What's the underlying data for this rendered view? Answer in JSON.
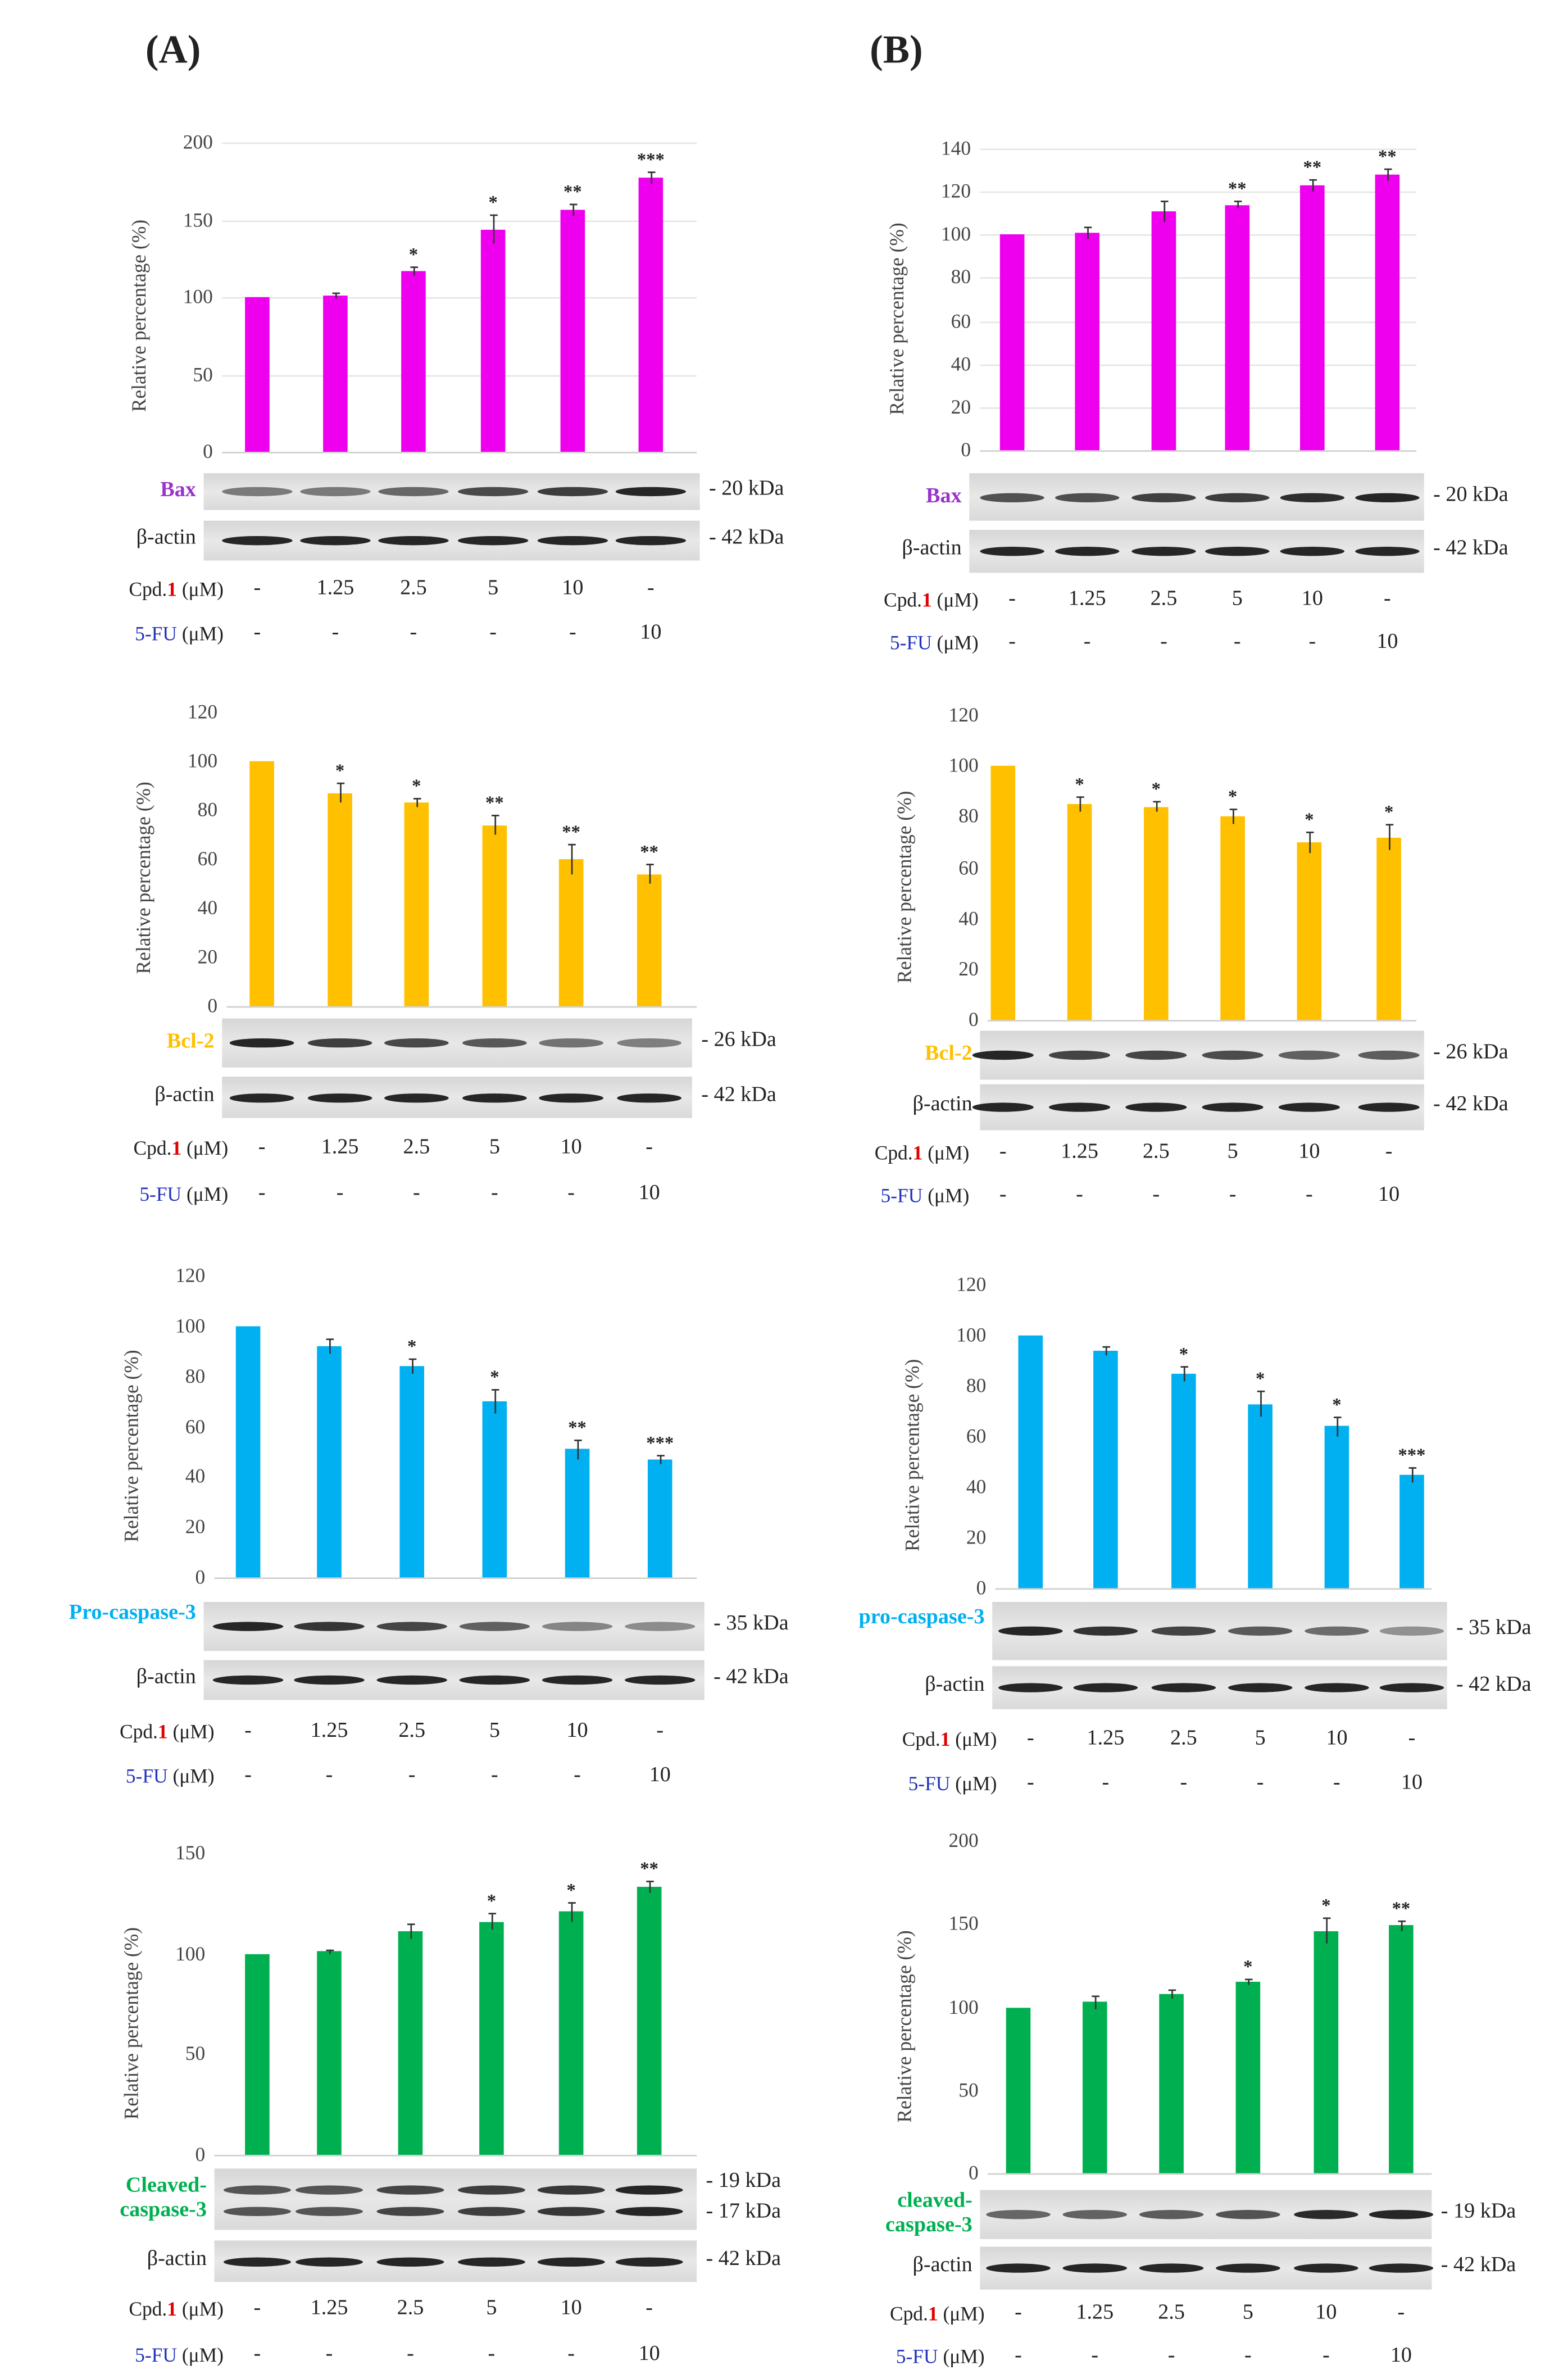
{
  "panels": [
    {
      "label": "(A)"
    },
    {
      "label": "(B)"
    }
  ],
  "colors": {
    "bax": "#EE00EE",
    "bcl2": "#FFC000",
    "procasp": "#00B0F0",
    "cleaved": "#00B050",
    "bax_label": "#9933CC",
    "cpd_number": "#E00000",
    "fu_label": "#2233BB"
  },
  "row_labels": {
    "cpd_prefix": "Cpd.",
    "cpd_number": "1",
    "unit": " (μM)",
    "fu": "5-FU"
  },
  "chart_data": [
    {
      "panel": "A",
      "type": "bar",
      "protein": "Bax",
      "protein_color": "#9933CC",
      "bar_color": "#EE00EE",
      "kda": [
        "- 20 kDa"
      ],
      "actin": "β-actin",
      "actin_kda": "- 42 kDa",
      "ylabel": "Relative percentage (%)",
      "ylim": [
        0,
        200
      ],
      "yticks": [
        0,
        50,
        100,
        150,
        200
      ],
      "values": [
        100,
        101,
        117,
        144,
        156,
        177
      ],
      "errors": [
        0,
        2,
        3,
        9,
        4,
        4
      ],
      "significance": [
        "",
        "",
        "*",
        "*",
        "**",
        "***"
      ],
      "cpd": [
        "-",
        "1.25",
        "2.5",
        "5",
        "10",
        "-"
      ],
      "fu": [
        "-",
        "-",
        "-",
        "-",
        "-",
        "10"
      ],
      "grid": true
    },
    {
      "panel": "A",
      "type": "bar",
      "protein": "Bcl-2",
      "protein_color": "#FFC000",
      "bar_color": "#FFC000",
      "kda": [
        "- 26 kDa"
      ],
      "actin": "β-actin",
      "actin_kda": "- 42 kDa",
      "ylabel": "Relative percentage (%)",
      "ylim": [
        0,
        120
      ],
      "yticks": [
        0,
        20,
        40,
        60,
        80,
        100,
        120
      ],
      "values": [
        100,
        87,
        83,
        74,
        60,
        54
      ],
      "errors": [
        0,
        4,
        2,
        4,
        6,
        4
      ],
      "significance": [
        "",
        "*",
        "*",
        "**",
        "**",
        "**"
      ],
      "cpd": [
        "-",
        "1.25",
        "2.5",
        "5",
        "10",
        "-"
      ],
      "fu": [
        "-",
        "-",
        "-",
        "-",
        "-",
        "10"
      ],
      "grid": false
    },
    {
      "panel": "A",
      "type": "bar",
      "protein": "Pro-caspase-3",
      "protein_color": "#00B0F0",
      "bar_color": "#00B0F0",
      "kda": [
        "- 35 kDa"
      ],
      "actin": "β-actin",
      "actin_kda": "- 42 kDa",
      "ylabel": "Relative percentage (%)",
      "ylim": [
        0,
        120
      ],
      "yticks": [
        0,
        20,
        40,
        60,
        80,
        100,
        120
      ],
      "values": [
        100,
        92,
        84,
        70,
        51,
        47
      ],
      "errors": [
        0,
        3,
        3,
        5,
        4,
        2
      ],
      "significance": [
        "",
        "",
        "*",
        "*",
        "**",
        "***"
      ],
      "cpd": [
        "-",
        "1.25",
        "2.5",
        "5",
        "10",
        "-"
      ],
      "fu": [
        "-",
        "-",
        "-",
        "-",
        "-",
        "10"
      ],
      "grid": false
    },
    {
      "panel": "A",
      "type": "bar",
      "protein": "Cleaved-caspase-3",
      "protein_color": "#00B050",
      "bar_color": "#00B050",
      "kda": [
        "- 19 kDa",
        "- 17 kDa"
      ],
      "actin": "β-actin",
      "actin_kda": "- 42 kDa",
      "ylabel": "Relative percentage (%)",
      "ylim": [
        0,
        150
      ],
      "yticks": [
        0,
        50,
        100,
        150
      ],
      "values": [
        100,
        101,
        111,
        116,
        121,
        133
      ],
      "errors": [
        0,
        1,
        4,
        4,
        5,
        3
      ],
      "significance": [
        "",
        "",
        "",
        "*",
        "*",
        "**"
      ],
      "cpd": [
        "-",
        "1.25",
        "2.5",
        "5",
        "10",
        "-"
      ],
      "fu": [
        "-",
        "-",
        "-",
        "-",
        "-",
        "10"
      ],
      "grid": false
    },
    {
      "panel": "B",
      "type": "bar",
      "protein": "Bax",
      "protein_color": "#9933CC",
      "bar_color": "#EE00EE",
      "kda": [
        "- 20 kDa"
      ],
      "actin": "β-actin",
      "actin_kda": "- 42 kDa",
      "ylabel": "Relative percentage (%)",
      "ylim": [
        0,
        140
      ],
      "yticks": [
        0,
        20,
        40,
        60,
        80,
        100,
        120,
        140
      ],
      "values": [
        100,
        101,
        111,
        114,
        123,
        128
      ],
      "errors": [
        0,
        3,
        5,
        2,
        3,
        3
      ],
      "significance": [
        "",
        "",
        "",
        "**",
        "**",
        "**"
      ],
      "cpd": [
        "-",
        "1.25",
        "2.5",
        "5",
        "10",
        "-"
      ],
      "fu": [
        "-",
        "-",
        "-",
        "-",
        "-",
        "10"
      ],
      "grid": true
    },
    {
      "panel": "B",
      "type": "bar",
      "protein": "Bcl-2",
      "protein_color": "#FFC000",
      "bar_color": "#FFC000",
      "kda": [
        "- 26 kDa"
      ],
      "actin": "β-actin",
      "actin_kda": "- 42 kDa",
      "ylabel": "Relative percentage (%)",
      "ylim": [
        0,
        120
      ],
      "yticks": [
        0,
        20,
        40,
        60,
        80,
        100,
        120
      ],
      "values": [
        100,
        85,
        84,
        80,
        70,
        72
      ],
      "errors": [
        0,
        3,
        2,
        3,
        4,
        5
      ],
      "significance": [
        "",
        "*",
        "*",
        "*",
        "*",
        "*"
      ],
      "cpd": [
        "-",
        "1.25",
        "2.5",
        "5",
        "10",
        "-"
      ],
      "fu": [
        "-",
        "-",
        "-",
        "-",
        "-",
        "10"
      ],
      "grid": false
    },
    {
      "panel": "B",
      "type": "bar",
      "protein": "pro-caspase-3",
      "protein_color": "#00B0F0",
      "bar_color": "#00B0F0",
      "kda": [
        "- 35 kDa"
      ],
      "actin": "β-actin",
      "actin_kda": "- 42 kDa",
      "ylabel": "Relative percentage (%)",
      "ylim": [
        0,
        120
      ],
      "yticks": [
        0,
        20,
        40,
        60,
        80,
        100,
        120
      ],
      "values": [
        100,
        94,
        85,
        73,
        64,
        45
      ],
      "errors": [
        0,
        2,
        3,
        5,
        4,
        3
      ],
      "significance": [
        "",
        "",
        "*",
        "*",
        "*",
        "***"
      ],
      "cpd": [
        "-",
        "1.25",
        "2.5",
        "5",
        "10",
        "-"
      ],
      "fu": [
        "-",
        "-",
        "-",
        "-",
        "-",
        "10"
      ],
      "grid": false
    },
    {
      "panel": "B",
      "type": "bar",
      "protein": "cleaved-caspase-3",
      "protein_color": "#00B050",
      "bar_color": "#00B050",
      "kda": [
        "- 19 kDa"
      ],
      "actin": "β-actin",
      "actin_kda": "- 42 kDa",
      "ylabel": "Relative percentage (%)",
      "ylim": [
        0,
        200
      ],
      "yticks": [
        0,
        50,
        100,
        150,
        200
      ],
      "values": [
        100,
        103,
        108,
        115,
        146,
        149
      ],
      "errors": [
        0,
        4,
        3,
        2,
        8,
        3
      ],
      "significance": [
        "",
        "",
        "",
        "*",
        "*",
        "**"
      ],
      "cpd": [
        "-",
        "1.25",
        "2.5",
        "5",
        "10",
        "-"
      ],
      "fu": [
        "-",
        "-",
        "-",
        "-",
        "-",
        "10"
      ],
      "grid": false
    }
  ]
}
